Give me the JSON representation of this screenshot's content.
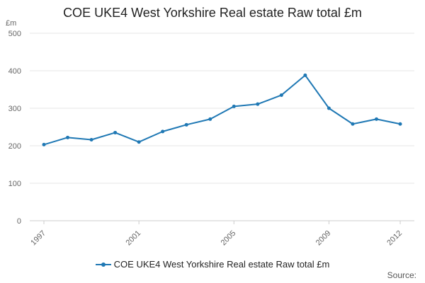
{
  "chart_data": {
    "type": "line",
    "title": "COE UKE4 West Yorkshire Real estate Raw total £m",
    "ylabel_unit": "£m",
    "xlabel": "",
    "ylim": [
      0,
      500
    ],
    "yticks": [
      0,
      100,
      200,
      300,
      400,
      500
    ],
    "xlim": [
      1997,
      2012
    ],
    "xticks": [
      1997,
      2001,
      2005,
      2009,
      2012
    ],
    "grid": true,
    "legend_position": "bottom",
    "colors": {
      "series": "#1f78b4",
      "grid": "#e6e6e6",
      "axis": "#cccccc"
    },
    "x": [
      1997,
      1998,
      1999,
      2000,
      2001,
      2002,
      2003,
      2004,
      2005,
      2006,
      2007,
      2008,
      2009,
      2010,
      2011,
      2012
    ],
    "series": [
      {
        "name": "COE UKE4 West Yorkshire Real estate Raw total £m",
        "values": [
          203,
          222,
          216,
          235,
          210,
          238,
          256,
          271,
          305,
          311,
          335,
          388,
          300,
          258,
          271,
          258
        ]
      }
    ],
    "source_label": "Source:"
  }
}
